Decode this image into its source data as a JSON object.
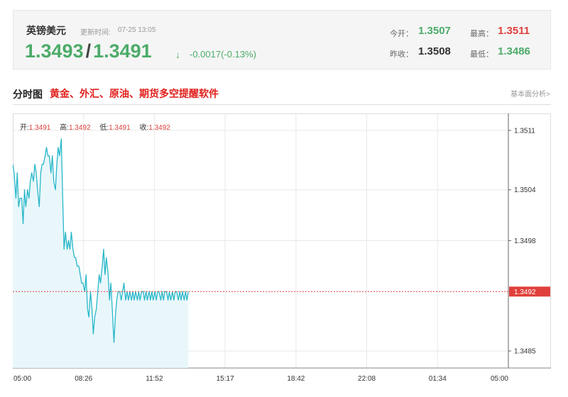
{
  "quote": {
    "name": "英镑美元",
    "update_label": "更新时间:",
    "update_time": "07-25 13:05",
    "bid": "1.3493",
    "ask": "1.3491",
    "arrow": "↓",
    "change": "-0.0017(-0.13%)",
    "open_label": "今开：",
    "open": "1.3507",
    "prev_close_label": "昨收：",
    "prev_close": "1.3508",
    "high_label": "最高：",
    "high": "1.3511",
    "low_label": "最低：",
    "low": "1.3486"
  },
  "section": {
    "title": "分时图",
    "promo": "黄金、外汇、原油、期货多空提醒软件",
    "link": "基本面分析>"
  },
  "colors": {
    "line": "#27b7c9",
    "area": "#e9f7fb",
    "up": "#e0403c",
    "down": "#4cab69",
    "grid": "#e8e8e8"
  },
  "chart_data": {
    "type": "area",
    "ohlc": {
      "open_label": "开:",
      "open": "1.3491",
      "high_label": "高:",
      "high": "1.3492",
      "low_label": "低:",
      "low": "1.3491",
      "close_label": "收:",
      "close": "1.3492"
    },
    "x_ticks": [
      "05:00",
      "08:26",
      "11:52",
      "15:17",
      "18:42",
      "22:08",
      "01:34",
      "05:00"
    ],
    "x_range": [
      0,
      1440
    ],
    "y_ticks": [
      1.3511,
      1.3504,
      1.3498,
      1.3485
    ],
    "y_tick_labels": [
      "1.3511",
      "1.3504",
      "1.3498",
      "1.3485"
    ],
    "ylim": [
      1.3483,
      1.3513
    ],
    "current_price": 1.3492,
    "current_label": "1.3492",
    "minutes": [
      0,
      4,
      9,
      13,
      17,
      21,
      26,
      30,
      34,
      38,
      43,
      47,
      51,
      55,
      60,
      64,
      68,
      72,
      77,
      81,
      85,
      89,
      94,
      98,
      102,
      106,
      111,
      115,
      119,
      124,
      128,
      132,
      136,
      141,
      145,
      149,
      153,
      158,
      162,
      166,
      170,
      175,
      179,
      183,
      187,
      192,
      196,
      200,
      204,
      209,
      213,
      217,
      221,
      226,
      230,
      234,
      238,
      243,
      247,
      251,
      255,
      260,
      264,
      268,
      272,
      277,
      281,
      285,
      289,
      294,
      298,
      302,
      306,
      311,
      315,
      319,
      323,
      328,
      332,
      336,
      340,
      345,
      349,
      353,
      357,
      362,
      366,
      370,
      374,
      379,
      383,
      387,
      391,
      396,
      400,
      404,
      408,
      413,
      417,
      421,
      425,
      430,
      434,
      438,
      442,
      447,
      451,
      455,
      459,
      464,
      468,
      472,
      476,
      481,
      485,
      489,
      493,
      498,
      502,
      506,
      510
    ],
    "values": [
      1.3507,
      1.3506,
      1.3503,
      1.3506,
      1.3502,
      1.3503,
      1.3503,
      1.35,
      1.3504,
      1.3502,
      1.3504,
      1.3503,
      1.3505,
      1.3506,
      1.3505,
      1.3507,
      1.3506,
      1.3504,
      1.3502,
      1.3506,
      1.3507,
      1.3507,
      1.3508,
      1.3509,
      1.3508,
      1.3508,
      1.3506,
      1.3508,
      1.3505,
      1.3504,
      1.3507,
      1.3509,
      1.3508,
      1.351,
      1.3503,
      1.3497,
      1.3499,
      1.3497,
      1.3498,
      1.3497,
      1.3499,
      1.3497,
      1.3496,
      1.3496,
      1.3495,
      1.3495,
      1.3494,
      1.3493,
      1.3493,
      1.3492,
      1.3494,
      1.349,
      1.3489,
      1.3492,
      1.349,
      1.3487,
      1.3489,
      1.349,
      1.3492,
      1.3494,
      1.3493,
      1.3495,
      1.3497,
      1.3494,
      1.3496,
      1.3494,
      1.3491,
      1.3493,
      1.349,
      1.3486,
      1.3489,
      1.3491,
      1.3492,
      1.3492,
      1.3491,
      1.3492,
      1.3493,
      1.3491,
      1.3492,
      1.3491,
      1.3492,
      1.3491,
      1.3492,
      1.3491,
      1.3492,
      1.3491,
      1.3492,
      1.3491,
      1.3492,
      1.3492,
      1.3491,
      1.3492,
      1.3491,
      1.3492,
      1.3491,
      1.3492,
      1.3491,
      1.3492,
      1.3491,
      1.3492,
      1.3492,
      1.3491,
      1.3492,
      1.3491,
      1.3492,
      1.3492,
      1.3491,
      1.3492,
      1.3491,
      1.3492,
      1.3491,
      1.3492,
      1.3492,
      1.3491,
      1.3492,
      1.3491,
      1.3492,
      1.3491,
      1.3492,
      1.3491,
      1.3492
    ]
  }
}
